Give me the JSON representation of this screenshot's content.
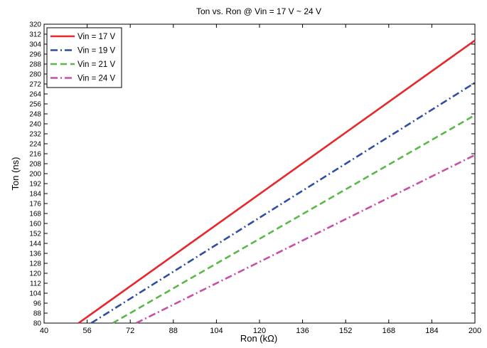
{
  "chart_data": {
    "type": "line",
    "title": "Ton vs. Ron @ Vin = 17 V ~ 24 V",
    "xlabel": "Ron (kΩ)",
    "ylabel": "Ton (ns)",
    "xlim": [
      40,
      200
    ],
    "ylim": [
      80,
      320
    ],
    "xticks": [
      40,
      56,
      72,
      88,
      104,
      120,
      136,
      152,
      168,
      184,
      200
    ],
    "yticks": [
      80,
      88,
      96,
      104,
      112,
      120,
      128,
      136,
      144,
      152,
      160,
      168,
      176,
      184,
      192,
      200,
      208,
      216,
      224,
      232,
      240,
      248,
      256,
      264,
      272,
      280,
      288,
      296,
      304,
      312,
      320
    ],
    "grid": false,
    "legend_position": "top-left",
    "series": [
      {
        "name": "Vin = 17 V",
        "color": "#e8262b",
        "dash": "solid",
        "x": [
          52.8,
          200
        ],
        "y": [
          80,
          307
        ]
      },
      {
        "name": "Vin = 19 V",
        "color": "#2e4fa3",
        "dash": "dashdot",
        "x": [
          57.5,
          200
        ],
        "y": [
          80,
          273
        ]
      },
      {
        "name": "Vin = 21 V",
        "color": "#5ab849",
        "dash": "dashed",
        "x": [
          65.5,
          200
        ],
        "y": [
          80,
          247
        ]
      },
      {
        "name": "Vin = 24 V",
        "color": "#c64fa8",
        "dash": "dashdot",
        "x": [
          74.2,
          200
        ],
        "y": [
          80,
          215
        ]
      }
    ]
  }
}
